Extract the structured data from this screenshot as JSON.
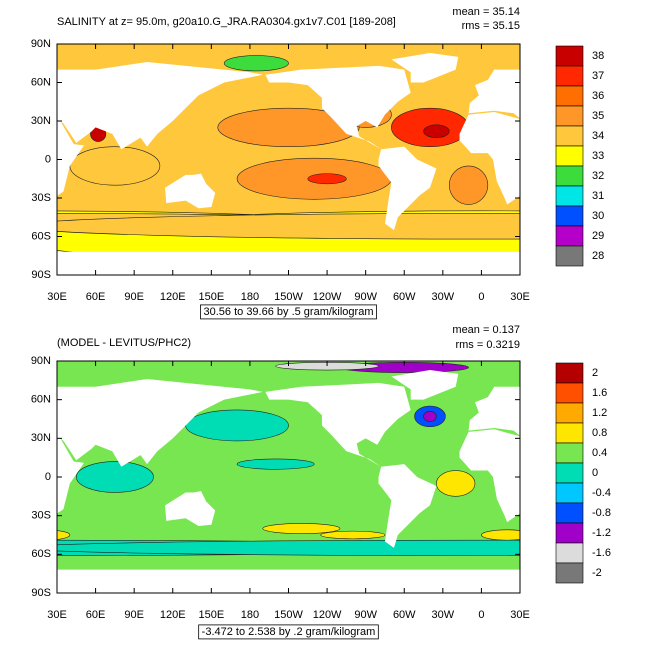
{
  "chart_data": [
    {
      "type": "contour-map",
      "title": "SALINITY at z=  95.0m, g20a10.G_JRA.RA0304.gx1v7.C01 [189-208]",
      "stats": [
        "mean = 35.14",
        "rms = 35.15"
      ],
      "info": "30.56 to 39.66 by .5 gram/kilogram",
      "xlim": [
        30,
        390
      ],
      "xticks": [
        {
          "value": 30,
          "label": "30E"
        },
        {
          "value": 60,
          "label": "60E"
        },
        {
          "value": 90,
          "label": "90E"
        },
        {
          "value": 120,
          "label": "120E"
        },
        {
          "value": 150,
          "label": "150E"
        },
        180,
        {
          "value": 210,
          "label": "150W"
        },
        {
          "value": 240,
          "label": "120W"
        },
        {
          "value": 270,
          "label": "90W"
        },
        {
          "value": 300,
          "label": "60W"
        },
        {
          "value": 330,
          "label": "30W"
        },
        {
          "value": 360,
          "label": "0"
        },
        {
          "value": 390,
          "label": "30E"
        }
      ],
      "ylim": [
        -90,
        90
      ],
      "yticks": [
        {
          "value": 90,
          "label": "90N"
        },
        {
          "value": 60,
          "label": "60N"
        },
        {
          "value": 30,
          "label": "30N"
        },
        0,
        {
          "value": -30,
          "label": "30S"
        },
        {
          "value": -60,
          "label": "60S"
        },
        {
          "value": -90,
          "label": "90S"
        }
      ],
      "levels": [
        38,
        37,
        36,
        35,
        34,
        33,
        32,
        31,
        30,
        29,
        28
      ],
      "colors": [
        "#c80000",
        "#ff2800",
        "#ff6e00",
        "#ff9628",
        "#ffc83c",
        "#ffff00",
        "#3cdc3c",
        "#00e6e6",
        "#0050ff",
        "#b400c8",
        "#787878"
      ]
    },
    {
      "type": "contour-map",
      "title": "(MODEL - LEVITUS/PHC2)",
      "stats": [
        "mean = 0.137",
        "rms = 0.3219"
      ],
      "info": "-3.472 to 2.538 by .2 gram/kilogram",
      "xlim": [
        30,
        390
      ],
      "xticks": [
        {
          "value": 30,
          "label": "30E"
        },
        {
          "value": 60,
          "label": "60E"
        },
        {
          "value": 90,
          "label": "90E"
        },
        {
          "value": 120,
          "label": "120E"
        },
        {
          "value": 150,
          "label": "150E"
        },
        180,
        {
          "value": 210,
          "label": "150W"
        },
        {
          "value": 240,
          "label": "120W"
        },
        {
          "value": 270,
          "label": "90W"
        },
        {
          "value": 300,
          "label": "60W"
        },
        {
          "value": 330,
          "label": "30W"
        },
        {
          "value": 360,
          "label": "0"
        },
        {
          "value": 390,
          "label": "30E"
        }
      ],
      "ylim": [
        -90,
        90
      ],
      "yticks": [
        {
          "value": 90,
          "label": "90N"
        },
        {
          "value": 60,
          "label": "60N"
        },
        {
          "value": 30,
          "label": "30N"
        },
        0,
        {
          "value": -30,
          "label": "30S"
        },
        {
          "value": -60,
          "label": "60S"
        },
        {
          "value": -90,
          "label": "90S"
        }
      ],
      "levels": [
        2,
        1.6,
        1.2,
        0.8,
        0.4,
        0,
        -0.4,
        -0.8,
        -1.2,
        -1.6,
        -2
      ],
      "colors": [
        "#b40000",
        "#ff5000",
        "#ffaa00",
        "#ffe600",
        "#78e650",
        "#00dcb4",
        "#00c8ff",
        "#0050ff",
        "#a000c8",
        "#dcdcdc",
        "#787878"
      ]
    }
  ]
}
